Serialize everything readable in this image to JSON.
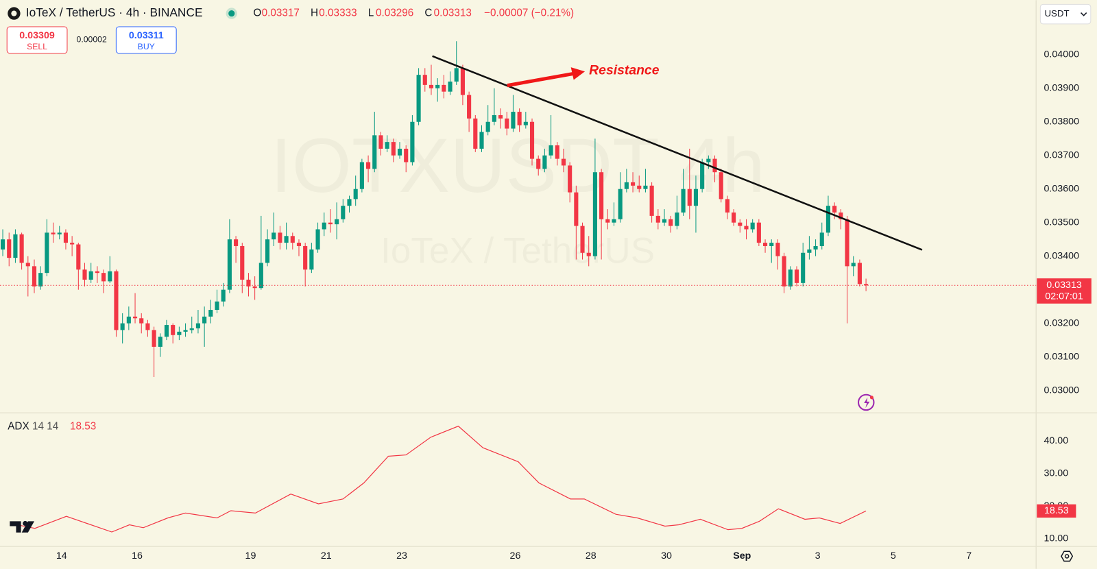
{
  "header": {
    "title": "IoTeX / TetherUS · 4h · BINANCE",
    "ohlc_labels": [
      "O",
      "H",
      "L",
      "C"
    ],
    "change": "−0.00007 (−0.21%)",
    "sell_price": 0.03309,
    "sell_label": "SELL",
    "spread": 2e-05,
    "buy_price": 0.03311,
    "buy_label": "BUY",
    "currency": "USDT",
    "countdown": "02:07:01",
    "watermark": "IOTXUSDT 4h",
    "watermark_sub": "IoTeX / TetherUS"
  },
  "chart_data": [
    {
      "type": "candlestick",
      "annotation": "Resistance",
      "up_color": "#089981",
      "down_color": "#f23645",
      "xlim": [
        -0.44,
        164
      ],
      "ylim": [
        0.029333,
        0.041625
      ],
      "xticks": [
        {
          "value": 9.33,
          "label": "14"
        },
        {
          "value": 21.33,
          "label": "16"
        },
        {
          "value": 39.33,
          "label": "19"
        },
        {
          "value": 51.33,
          "label": "21"
        },
        {
          "value": 63.33,
          "label": "23"
        },
        {
          "value": 81.33,
          "label": "26"
        },
        {
          "value": 93.33,
          "label": "28"
        },
        {
          "value": 105.33,
          "label": "30"
        },
        {
          "value": 117.33,
          "label": "Sep"
        },
        {
          "value": 129.33,
          "label": "3"
        },
        {
          "value": 141.33,
          "label": "5"
        },
        {
          "value": 153.33,
          "label": "7"
        }
      ],
      "yticks": [
        {
          "value": 0.03,
          "label": "0.03000"
        },
        {
          "value": 0.031,
          "label": "0.03100"
        },
        {
          "value": 0.032,
          "label": "0.03200"
        },
        {
          "value": 0.033,
          "label": "0.03300"
        },
        {
          "value": 0.034,
          "label": "0.03400"
        },
        {
          "value": 0.035,
          "label": "0.03500"
        },
        {
          "value": 0.036,
          "label": "0.03600"
        },
        {
          "value": 0.037,
          "label": "0.03700"
        },
        {
          "value": 0.038,
          "label": "0.03800"
        },
        {
          "value": 0.039,
          "label": "0.03900"
        },
        {
          "value": 0.04,
          "label": "0.04000"
        }
      ],
      "ohlc": [
        [
          0.0342,
          0.0348,
          0.034,
          0.0345
        ],
        [
          0.0345,
          0.0347,
          0.0337,
          0.03395
        ],
        [
          0.03395,
          0.0348,
          0.0338,
          0.03465
        ],
        [
          0.03465,
          0.0347,
          0.0336,
          0.0338
        ],
        [
          0.0338,
          0.034,
          0.0328,
          0.0337
        ],
        [
          0.0337,
          0.0339,
          0.0329,
          0.0331
        ],
        [
          0.0331,
          0.0337,
          0.033,
          0.0335
        ],
        [
          0.0335,
          0.0351,
          0.0334,
          0.0347
        ],
        [
          0.0347,
          0.035,
          0.0344,
          0.03465
        ],
        [
          0.03465,
          0.0349,
          0.0345,
          0.0347
        ],
        [
          0.0347,
          0.0348,
          0.0342,
          0.0344
        ],
        [
          0.0344,
          0.0346,
          0.034,
          0.03435
        ],
        [
          0.03435,
          0.0344,
          0.033,
          0.0336
        ],
        [
          0.0336,
          0.0338,
          0.0331,
          0.0333
        ],
        [
          0.0333,
          0.0338,
          0.0332,
          0.03355
        ],
        [
          0.03355,
          0.0337,
          0.0332,
          0.0335
        ],
        [
          0.0335,
          0.0336,
          0.0329,
          0.03325
        ],
        [
          0.03325,
          0.034,
          0.0332,
          0.03355
        ],
        [
          0.03355,
          0.0336,
          0.0316,
          0.0318
        ],
        [
          0.0318,
          0.0323,
          0.0314,
          0.032
        ],
        [
          0.032,
          0.0325,
          0.0318,
          0.0322
        ],
        [
          0.0322,
          0.0329,
          0.032,
          0.03215
        ],
        [
          0.03215,
          0.0323,
          0.0317,
          0.032
        ],
        [
          0.032,
          0.0321,
          0.0316,
          0.0318
        ],
        [
          0.0318,
          0.0319,
          0.0304,
          0.0313
        ],
        [
          0.0313,
          0.0317,
          0.031,
          0.0316
        ],
        [
          0.0316,
          0.0321,
          0.0315,
          0.03195
        ],
        [
          0.03195,
          0.032,
          0.0314,
          0.03165
        ],
        [
          0.03165,
          0.0319,
          0.0315,
          0.03175
        ],
        [
          0.03175,
          0.032,
          0.0316,
          0.0318
        ],
        [
          0.0318,
          0.0322,
          0.0317,
          0.03185
        ],
        [
          0.03185,
          0.0324,
          0.0317,
          0.032
        ],
        [
          0.032,
          0.0325,
          0.0313,
          0.0322
        ],
        [
          0.0322,
          0.0327,
          0.032,
          0.0324
        ],
        [
          0.0324,
          0.033,
          0.0323,
          0.03265
        ],
        [
          0.03265,
          0.0332,
          0.0325,
          0.033
        ],
        [
          0.033,
          0.0351,
          0.0329,
          0.0345
        ],
        [
          0.0345,
          0.0346,
          0.0338,
          0.0343
        ],
        [
          0.0343,
          0.0344,
          0.0329,
          0.0333
        ],
        [
          0.0333,
          0.0335,
          0.0328,
          0.0331
        ],
        [
          0.0331,
          0.0334,
          0.0327,
          0.03305
        ],
        [
          0.03305,
          0.0352,
          0.033,
          0.0338
        ],
        [
          0.0338,
          0.0348,
          0.0337,
          0.0345
        ],
        [
          0.0345,
          0.0353,
          0.0343,
          0.0347
        ],
        [
          0.0347,
          0.0349,
          0.0342,
          0.0344
        ],
        [
          0.0344,
          0.035,
          0.0342,
          0.0346
        ],
        [
          0.0346,
          0.0347,
          0.0342,
          0.0344
        ],
        [
          0.0344,
          0.0345,
          0.034,
          0.0343
        ],
        [
          0.0343,
          0.0344,
          0.0331,
          0.0336
        ],
        [
          0.0336,
          0.0344,
          0.0335,
          0.0342
        ],
        [
          0.0342,
          0.035,
          0.0341,
          0.0348
        ],
        [
          0.0348,
          0.0353,
          0.0346,
          0.035
        ],
        [
          0.035,
          0.0354,
          0.0347,
          0.03495
        ],
        [
          0.03495,
          0.0356,
          0.0345,
          0.0351
        ],
        [
          0.0351,
          0.0357,
          0.035,
          0.0355
        ],
        [
          0.0355,
          0.0358,
          0.0353,
          0.0357
        ],
        [
          0.0357,
          0.0364,
          0.0355,
          0.036
        ],
        [
          0.036,
          0.0369,
          0.0359,
          0.0368
        ],
        [
          0.0368,
          0.037,
          0.0362,
          0.0366
        ],
        [
          0.0366,
          0.0383,
          0.0365,
          0.0376
        ],
        [
          0.0376,
          0.0377,
          0.037,
          0.0372
        ],
        [
          0.0372,
          0.0376,
          0.0371,
          0.0374
        ],
        [
          0.0374,
          0.0375,
          0.0368,
          0.037
        ],
        [
          0.037,
          0.0374,
          0.0369,
          0.0372
        ],
        [
          0.0372,
          0.0373,
          0.0365,
          0.0368
        ],
        [
          0.0368,
          0.0382,
          0.0367,
          0.038
        ],
        [
          0.038,
          0.0396,
          0.0379,
          0.0394
        ],
        [
          0.0394,
          0.0396,
          0.0389,
          0.0391
        ],
        [
          0.0391,
          0.0397,
          0.0388,
          0.039
        ],
        [
          0.039,
          0.0393,
          0.0386,
          0.0391
        ],
        [
          0.0391,
          0.0394,
          0.0387,
          0.0389
        ],
        [
          0.0389,
          0.0395,
          0.0388,
          0.0392
        ],
        [
          0.0392,
          0.0404,
          0.0391,
          0.0396
        ],
        [
          0.0396,
          0.0397,
          0.0385,
          0.0388
        ],
        [
          0.0388,
          0.0389,
          0.0377,
          0.0381
        ],
        [
          0.0381,
          0.0382,
          0.0371,
          0.0372
        ],
        [
          0.0372,
          0.0379,
          0.0371,
          0.0377
        ],
        [
          0.0377,
          0.0385,
          0.0376,
          0.038
        ],
        [
          0.038,
          0.039,
          0.0379,
          0.0382
        ],
        [
          0.0382,
          0.0384,
          0.0378,
          0.0381
        ],
        [
          0.0381,
          0.0383,
          0.0376,
          0.0378
        ],
        [
          0.0378,
          0.0388,
          0.0377,
          0.0383
        ],
        [
          0.0383,
          0.0384,
          0.0377,
          0.0379
        ],
        [
          0.0379,
          0.0383,
          0.0378,
          0.038
        ],
        [
          0.038,
          0.0381,
          0.0367,
          0.0369
        ],
        [
          0.0369,
          0.037,
          0.0364,
          0.0366
        ],
        [
          0.0366,
          0.0372,
          0.0365,
          0.037
        ],
        [
          0.037,
          0.0382,
          0.0369,
          0.0373
        ],
        [
          0.0373,
          0.0374,
          0.0367,
          0.0369
        ],
        [
          0.0369,
          0.0372,
          0.0365,
          0.0367
        ],
        [
          0.0367,
          0.0368,
          0.0356,
          0.0359
        ],
        [
          0.0359,
          0.0361,
          0.0339,
          0.0349
        ],
        [
          0.0349,
          0.035,
          0.0339,
          0.0341
        ],
        [
          0.0341,
          0.0346,
          0.0337,
          0.034
        ],
        [
          0.034,
          0.0375,
          0.0339,
          0.0365
        ],
        [
          0.0365,
          0.0366,
          0.0339,
          0.0351
        ],
        [
          0.0351,
          0.0354,
          0.0348,
          0.035
        ],
        [
          0.035,
          0.0356,
          0.0349,
          0.0351
        ],
        [
          0.0351,
          0.0365,
          0.035,
          0.036
        ],
        [
          0.036,
          0.0366,
          0.0359,
          0.0362
        ],
        [
          0.0362,
          0.0365,
          0.0359,
          0.0361
        ],
        [
          0.0361,
          0.0364,
          0.0359,
          0.036
        ],
        [
          0.036,
          0.0366,
          0.0359,
          0.0361
        ],
        [
          0.0361,
          0.0362,
          0.035,
          0.0352
        ],
        [
          0.0352,
          0.0354,
          0.0348,
          0.035
        ],
        [
          0.035,
          0.0354,
          0.0349,
          0.0351
        ],
        [
          0.0351,
          0.0352,
          0.0347,
          0.0349
        ],
        [
          0.0349,
          0.0358,
          0.0348,
          0.0353
        ],
        [
          0.0353,
          0.0366,
          0.0352,
          0.036
        ],
        [
          0.036,
          0.0372,
          0.0351,
          0.0355
        ],
        [
          0.0355,
          0.0364,
          0.0347,
          0.036
        ],
        [
          0.036,
          0.0369,
          0.0359,
          0.0368
        ],
        [
          0.0368,
          0.037,
          0.0366,
          0.0369
        ],
        [
          0.0369,
          0.037,
          0.0362,
          0.0365
        ],
        [
          0.0365,
          0.0366,
          0.0356,
          0.0357
        ],
        [
          0.0357,
          0.0358,
          0.0351,
          0.0353
        ],
        [
          0.0353,
          0.0354,
          0.0349,
          0.035
        ],
        [
          0.035,
          0.0351,
          0.0347,
          0.0349
        ],
        [
          0.0349,
          0.0351,
          0.0345,
          0.0348
        ],
        [
          0.0348,
          0.0351,
          0.0347,
          0.035
        ],
        [
          0.035,
          0.0351,
          0.0343,
          0.0344
        ],
        [
          0.0344,
          0.0345,
          0.0341,
          0.0343
        ],
        [
          0.0343,
          0.0345,
          0.0338,
          0.0344
        ],
        [
          0.0344,
          0.0345,
          0.0336,
          0.034
        ],
        [
          0.034,
          0.0341,
          0.0329,
          0.0331
        ],
        [
          0.0331,
          0.0337,
          0.033,
          0.0336
        ],
        [
          0.0336,
          0.0337,
          0.0331,
          0.0332
        ],
        [
          0.0332,
          0.0344,
          0.0331,
          0.0341
        ],
        [
          0.0341,
          0.0346,
          0.0339,
          0.0342
        ],
        [
          0.0342,
          0.0345,
          0.034,
          0.0343
        ],
        [
          0.0343,
          0.035,
          0.0342,
          0.0347
        ],
        [
          0.0347,
          0.0358,
          0.0346,
          0.0355
        ],
        [
          0.0355,
          0.0356,
          0.0351,
          0.0353
        ],
        [
          0.0353,
          0.0354,
          0.0348,
          0.0351
        ],
        [
          0.0351,
          0.0352,
          0.032,
          0.0337
        ],
        [
          0.0337,
          0.034,
          0.0334,
          0.0338
        ],
        [
          0.0338,
          0.0339,
          0.0331,
          0.03317
        ],
        [
          0.03317,
          0.03333,
          0.03296,
          0.03313
        ]
      ]
    },
    {
      "type": "line",
      "title": "ADX",
      "params": "14 14",
      "color": "#f23645",
      "xlim": [
        -0.44,
        164
      ],
      "ylim": [
        6.8,
        47.5
      ],
      "yticks": [
        {
          "value": 10,
          "label": "10.00"
        },
        {
          "value": 20,
          "label": "20.00"
        },
        {
          "value": 30,
          "label": "30.00"
        },
        {
          "value": 40,
          "label": "40.00"
        }
      ],
      "x": [
        1.2,
        5.1,
        10.1,
        17.3,
        20.1,
        22.3,
        26.2,
        29,
        34,
        36.2,
        40.1,
        45.7,
        50.1,
        54,
        57.3,
        61.2,
        64,
        67.9,
        72.3,
        76.2,
        81.8,
        85.1,
        90.1,
        92.3,
        97.3,
        100.7,
        105.1,
        107.3,
        110.7,
        115.1,
        117.3,
        120.1,
        123.1,
        127.3,
        129.6,
        132.9,
        137
      ],
      "values": [
        14.7,
        13.2,
        16.9,
        12.1,
        14.3,
        13.4,
        16.4,
        17.9,
        16.4,
        18.6,
        17.9,
        23.7,
        20.7,
        22.2,
        27.1,
        35.3,
        35.7,
        41.1,
        44.5,
        37.9,
        33.6,
        27.1,
        22.2,
        22.2,
        17.5,
        16.4,
        13.9,
        14.3,
        16.0,
        12.8,
        13.2,
        15.4,
        19.2,
        16.0,
        16.4,
        14.7,
        18.53
      ]
    }
  ]
}
